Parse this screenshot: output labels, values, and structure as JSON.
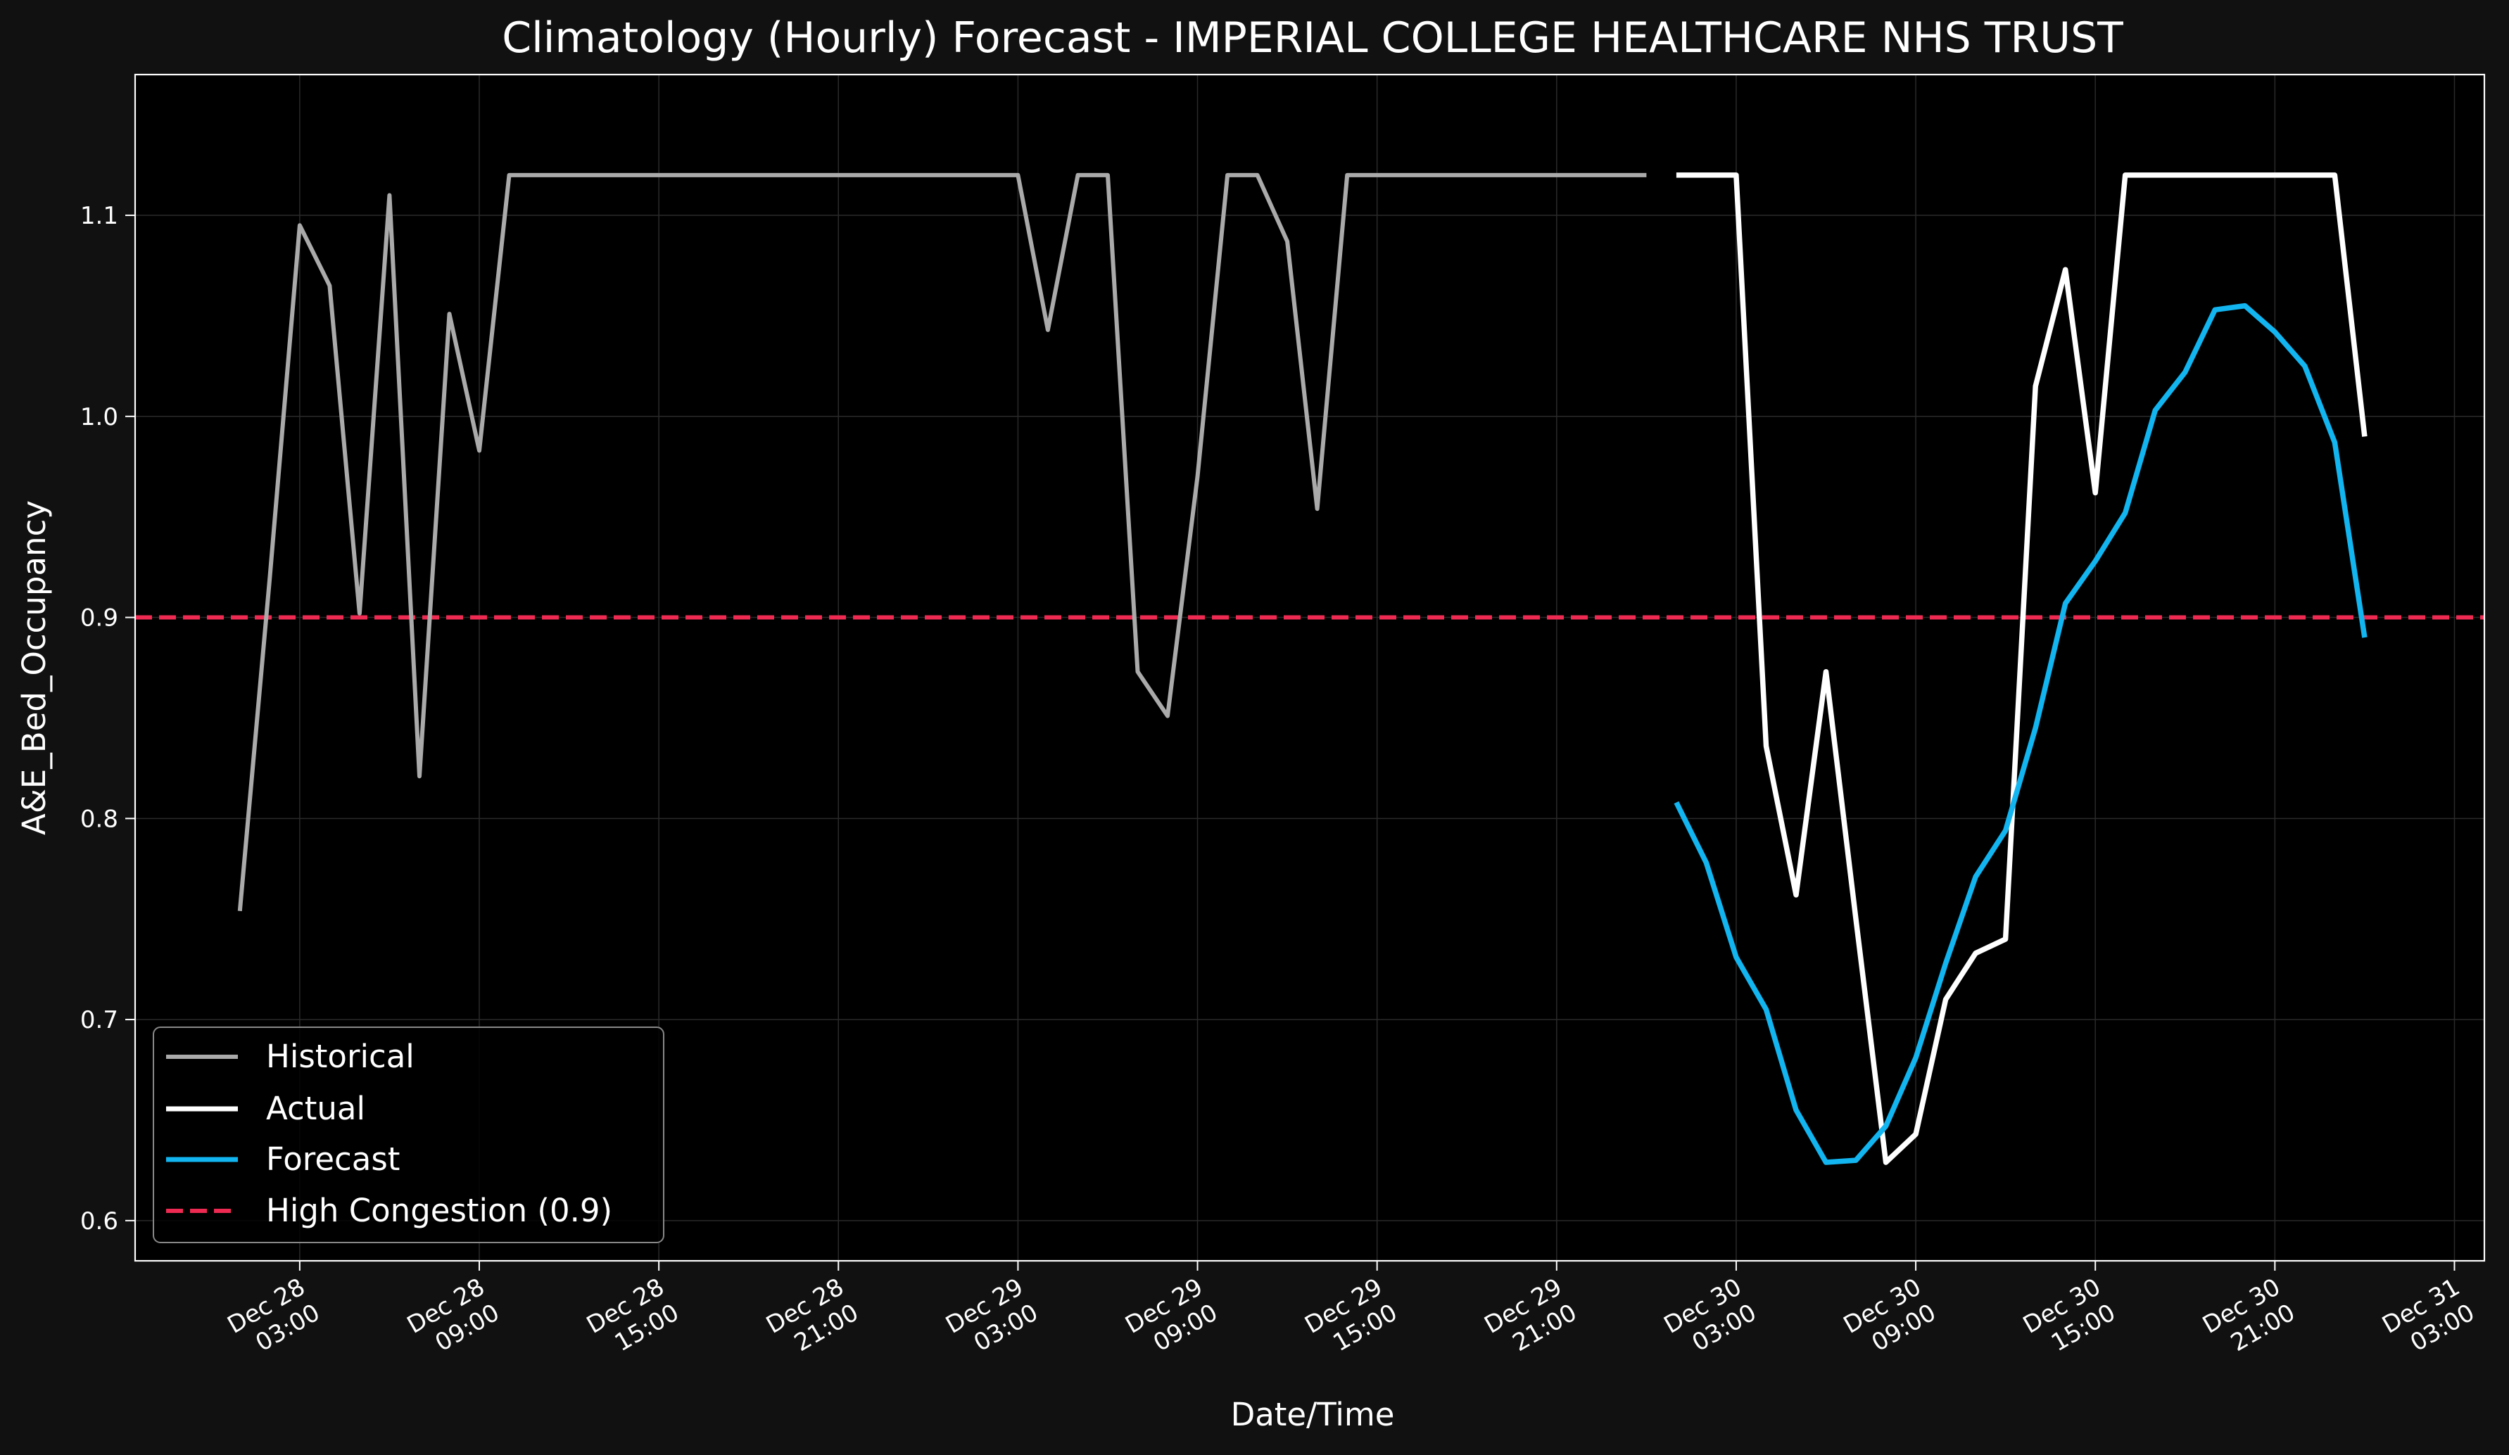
{
  "chart_data": {
    "type": "line",
    "title": "Climatology (Hourly) Forecast - IMPERIAL COLLEGE HEALTHCARE NHS TRUST",
    "xlabel": "Date/Time",
    "ylabel": "A&E_Bed_Occupancy",
    "x_axis_type": "datetime",
    "xlim": [
      "Dec 27 21:30",
      "Dec 31 04:00"
    ],
    "ylim": [
      0.58,
      1.17
    ],
    "grid": true,
    "legend_position": "lower-left",
    "x_ticks": [
      {
        "date": "Dec 28",
        "time": "03:00"
      },
      {
        "date": "Dec 28",
        "time": "09:00"
      },
      {
        "date": "Dec 28",
        "time": "15:00"
      },
      {
        "date": "Dec 28",
        "time": "21:00"
      },
      {
        "date": "Dec 29",
        "time": "03:00"
      },
      {
        "date": "Dec 29",
        "time": "09:00"
      },
      {
        "date": "Dec 29",
        "time": "15:00"
      },
      {
        "date": "Dec 29",
        "time": "21:00"
      },
      {
        "date": "Dec 30",
        "time": "03:00"
      },
      {
        "date": "Dec 30",
        "time": "09:00"
      },
      {
        "date": "Dec 30",
        "time": "15:00"
      },
      {
        "date": "Dec 30",
        "time": "21:00"
      },
      {
        "date": "Dec 31",
        "time": "03:00"
      }
    ],
    "y_ticks": [
      "0.6",
      "0.7",
      "0.8",
      "0.9",
      "1.0",
      "1.1"
    ],
    "series": [
      {
        "name": "Historical",
        "color": "#aaaaaa",
        "points": [
          [
            "Dec 28 01:00",
            0.754
          ],
          [
            "Dec 28 02:00",
            0.92
          ],
          [
            "Dec 28 03:00",
            1.095
          ],
          [
            "Dec 28 04:00",
            1.065
          ],
          [
            "Dec 28 05:00",
            0.902
          ],
          [
            "Dec 28 06:00",
            1.11
          ],
          [
            "Dec 28 07:00",
            0.821
          ],
          [
            "Dec 28 08:00",
            1.051
          ],
          [
            "Dec 28 09:00",
            0.983
          ],
          [
            "Dec 28 10:00",
            1.12
          ],
          [
            "Dec 28 11:00",
            1.12
          ],
          [
            "Dec 28 12:00",
            1.12
          ],
          [
            "Dec 28 13:00",
            1.12
          ],
          [
            "Dec 28 14:00",
            1.12
          ],
          [
            "Dec 28 15:00",
            1.12
          ],
          [
            "Dec 28 16:00",
            1.12
          ],
          [
            "Dec 28 17:00",
            1.12
          ],
          [
            "Dec 28 18:00",
            1.12
          ],
          [
            "Dec 28 19:00",
            1.12
          ],
          [
            "Dec 28 20:00",
            1.12
          ],
          [
            "Dec 28 21:00",
            1.12
          ],
          [
            "Dec 28 22:00",
            1.12
          ],
          [
            "Dec 28 23:00",
            1.12
          ],
          [
            "Dec 29 00:00",
            1.12
          ],
          [
            "Dec 29 01:00",
            1.12
          ],
          [
            "Dec 29 02:00",
            1.12
          ],
          [
            "Dec 29 03:00",
            1.12
          ],
          [
            "Dec 29 04:00",
            1.043
          ],
          [
            "Dec 29 05:00",
            1.12
          ],
          [
            "Dec 29 06:00",
            1.12
          ],
          [
            "Dec 29 07:00",
            0.873
          ],
          [
            "Dec 29 08:00",
            0.851
          ],
          [
            "Dec 29 09:00",
            0.97
          ],
          [
            "Dec 29 10:00",
            1.12
          ],
          [
            "Dec 29 11:00",
            1.12
          ],
          [
            "Dec 29 12:00",
            1.087
          ],
          [
            "Dec 29 13:00",
            0.954
          ],
          [
            "Dec 29 14:00",
            1.12
          ],
          [
            "Dec 29 15:00",
            1.12
          ],
          [
            "Dec 29 16:00",
            1.12
          ],
          [
            "Dec 29 17:00",
            1.12
          ],
          [
            "Dec 29 18:00",
            1.12
          ],
          [
            "Dec 29 19:00",
            1.12
          ],
          [
            "Dec 29 20:00",
            1.12
          ],
          [
            "Dec 29 21:00",
            1.12
          ],
          [
            "Dec 29 22:00",
            1.12
          ],
          [
            "Dec 29 23:00",
            1.12
          ],
          [
            "Dec 30 00:00",
            1.12
          ]
        ]
      },
      {
        "name": "Actual",
        "color": "#ffffff",
        "points": [
          [
            "Dec 30 01:00",
            1.12
          ],
          [
            "Dec 30 02:00",
            1.12
          ],
          [
            "Dec 30 03:00",
            1.12
          ],
          [
            "Dec 30 04:00",
            0.836
          ],
          [
            "Dec 30 05:00",
            0.762
          ],
          [
            "Dec 30 06:00",
            0.873
          ],
          [
            "Dec 30 07:00",
            0.75
          ],
          [
            "Dec 30 08:00",
            0.629
          ],
          [
            "Dec 30 09:00",
            0.643
          ],
          [
            "Dec 30 10:00",
            0.71
          ],
          [
            "Dec 30 11:00",
            0.733
          ],
          [
            "Dec 30 12:00",
            0.74
          ],
          [
            "Dec 30 13:00",
            1.015
          ],
          [
            "Dec 30 14:00",
            1.073
          ],
          [
            "Dec 30 15:00",
            0.962
          ],
          [
            "Dec 30 16:00",
            1.12
          ],
          [
            "Dec 30 17:00",
            1.12
          ],
          [
            "Dec 30 18:00",
            1.12
          ],
          [
            "Dec 30 19:00",
            1.12
          ],
          [
            "Dec 30 20:00",
            1.12
          ],
          [
            "Dec 30 21:00",
            1.12
          ],
          [
            "Dec 30 22:00",
            1.12
          ],
          [
            "Dec 30 23:00",
            1.12
          ],
          [
            "Dec 31 00:00",
            0.99
          ]
        ]
      },
      {
        "name": "Forecast",
        "color": "#12b5f0",
        "points": [
          [
            "Dec 30 01:00",
            0.808
          ],
          [
            "Dec 30 02:00",
            0.778
          ],
          [
            "Dec 30 03:00",
            0.731
          ],
          [
            "Dec 30 04:00",
            0.705
          ],
          [
            "Dec 30 05:00",
            0.655
          ],
          [
            "Dec 30 06:00",
            0.629
          ],
          [
            "Dec 30 07:00",
            0.63
          ],
          [
            "Dec 30 08:00",
            0.647
          ],
          [
            "Dec 30 09:00",
            0.681
          ],
          [
            "Dec 30 10:00",
            0.728
          ],
          [
            "Dec 30 11:00",
            0.771
          ],
          [
            "Dec 30 12:00",
            0.794
          ],
          [
            "Dec 30 13:00",
            0.845
          ],
          [
            "Dec 30 14:00",
            0.907
          ],
          [
            "Dec 30 15:00",
            0.928
          ],
          [
            "Dec 30 16:00",
            0.952
          ],
          [
            "Dec 30 17:00",
            1.003
          ],
          [
            "Dec 30 18:00",
            1.022
          ],
          [
            "Dec 30 19:00",
            1.053
          ],
          [
            "Dec 30 20:00",
            1.055
          ],
          [
            "Dec 30 21:00",
            1.042
          ],
          [
            "Dec 30 22:00",
            1.025
          ],
          [
            "Dec 30 23:00",
            0.987
          ],
          [
            "Dec 31 00:00",
            0.89
          ]
        ]
      }
    ],
    "reference_line": {
      "name": "High Congestion (0.9)",
      "value": 0.9,
      "color": "#ee2a52",
      "style": "dashed"
    },
    "colors": {
      "figure_background": "#111111",
      "plot_background": "#000000",
      "grid": "#2a2a2a",
      "text": "#ffffff"
    }
  }
}
